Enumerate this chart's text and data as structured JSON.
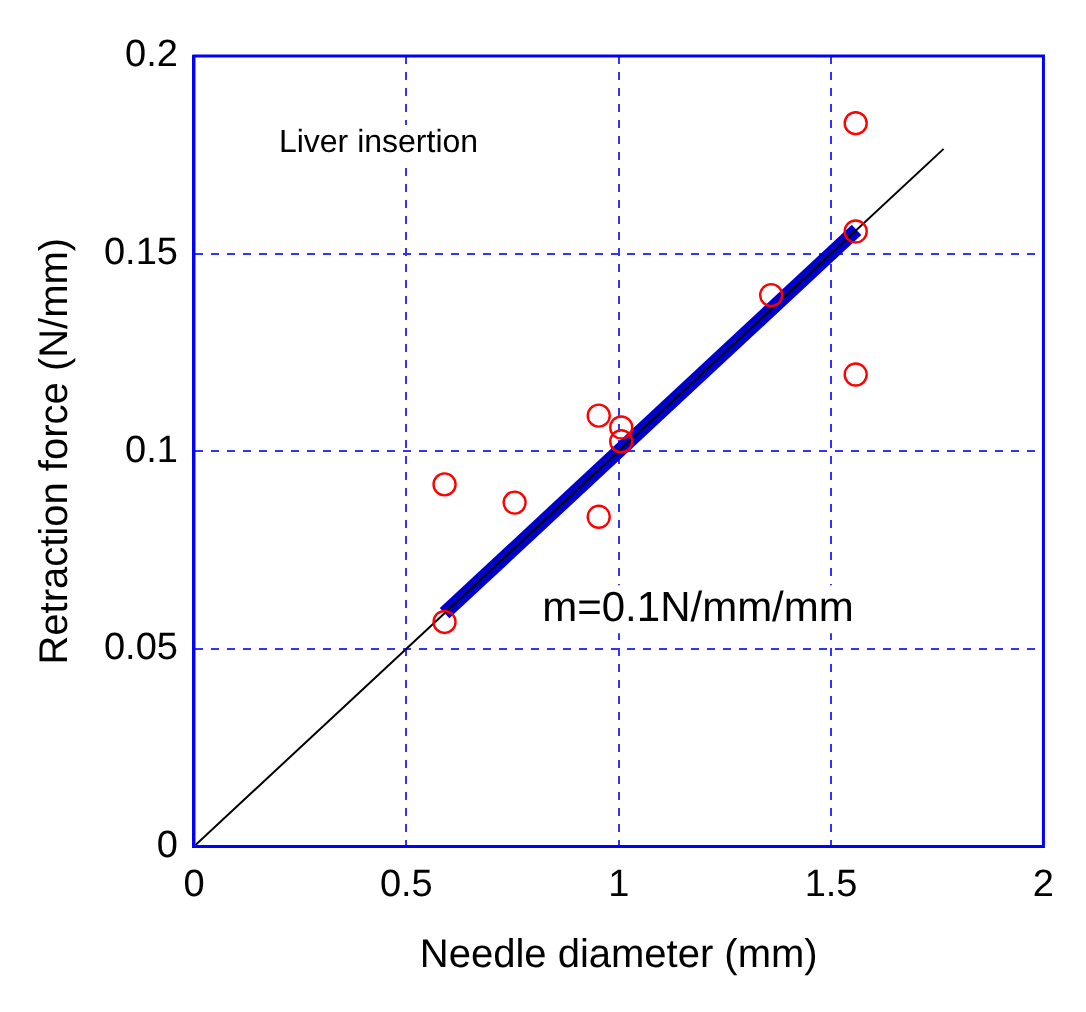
{
  "chart_data": {
    "type": "scatter",
    "xlabel": "Needle diameter (mm)",
    "ylabel": "Retraction force (N/mm)",
    "annotations": [
      "Liver insertion",
      "m=0.1N/mm/mm"
    ],
    "series": [
      {
        "color": "#ff0000",
        "x": [
          0.59,
          0.59,
          0.755,
          0.953,
          0.953,
          1.006,
          1.006,
          1.359,
          1.558,
          1.558,
          1.558
        ],
        "values": [
          0.0916,
          0.0568,
          0.087,
          0.0834,
          0.109,
          0.106,
          0.1025,
          0.1395,
          0.183,
          0.1556,
          0.1194
        ],
        "marker": "circle"
      },
      {
        "type": "line",
        "color": "#0000cc",
        "x": [
          0.59,
          1.56
        ],
        "values": [
          0.059,
          0.156
        ],
        "marker": "none",
        "line_style": "solid"
      },
      {
        "type": "line",
        "color": "#000000",
        "x": [
          0,
          1.765
        ],
        "values": [
          0,
          0.1765
        ],
        "marker": "none",
        "line_style": "solid"
      }
    ],
    "xlim": [
      0,
      2
    ],
    "xticks": [
      0,
      0.5,
      1,
      1.5,
      2
    ],
    "ylim": [
      0,
      0.2
    ],
    "yticks": [
      0,
      0.05,
      0.1,
      0.15,
      0.2
    ],
    "grid": true,
    "legend": false
  }
}
